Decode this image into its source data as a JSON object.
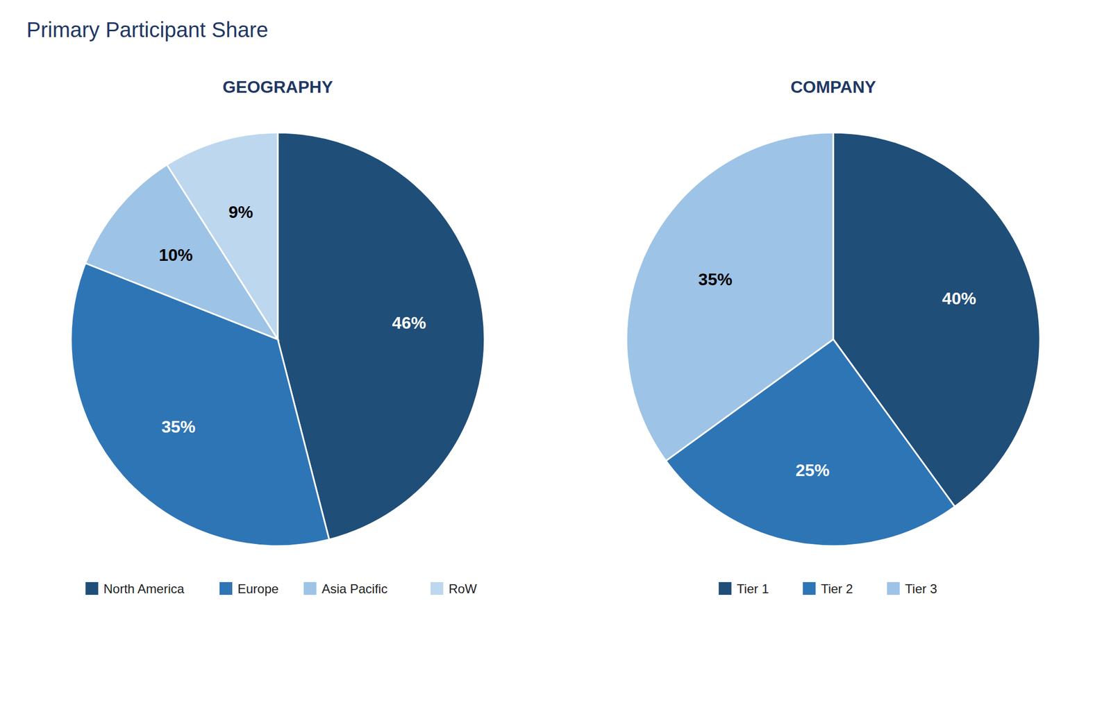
{
  "title": "Primary Participant Share",
  "chart_data": [
    {
      "type": "pie",
      "title": "GEOGRAPHY",
      "categories": [
        "North America",
        "Europe",
        "Asia Pacific",
        "RoW"
      ],
      "values": [
        46,
        35,
        10,
        9
      ],
      "value_labels": [
        "46%",
        "35%",
        "10%",
        "9%"
      ],
      "colors": [
        "#1F4E79",
        "#2E75B6",
        "#9DC3E6",
        "#BDD7EE"
      ],
      "data_labels": true,
      "legend": "bottom"
    },
    {
      "type": "pie",
      "title": "COMPANY",
      "categories": [
        "Tier 1",
        "Tier 2",
        "Tier 3"
      ],
      "values": [
        40,
        25,
        35
      ],
      "value_labels": [
        "40%",
        "25%",
        "35%"
      ],
      "colors": [
        "#1F4E79",
        "#2E75B6",
        "#9DC3E6"
      ],
      "data_labels": true,
      "legend": "bottom"
    }
  ]
}
